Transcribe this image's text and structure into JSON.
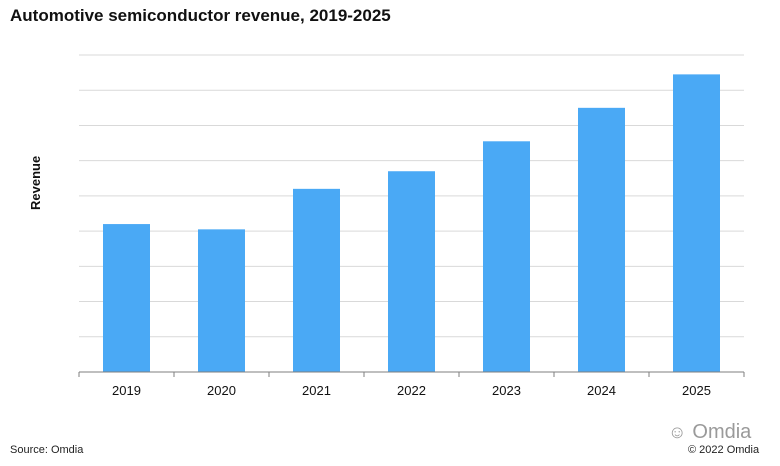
{
  "chart_data": {
    "type": "bar",
    "title": "Automotive semiconductor revenue, 2019-2025",
    "xlabel": "",
    "ylabel": "Revenue",
    "categories": [
      "2019",
      "2020",
      "2021",
      "2022",
      "2023",
      "2024",
      "2025"
    ],
    "values": [
      4.2,
      4.05,
      5.2,
      5.7,
      6.55,
      7.5,
      8.45
    ],
    "ylim": [
      0,
      9
    ],
    "grid": true,
    "bar_color": "#4aa9f5",
    "grid_color": "#d9d9d9",
    "axis_color": "#7f7f7f"
  },
  "footer": {
    "source": "Source: Omdia",
    "watermark": "Omdia",
    "watermark_icon": "wechat-icon",
    "copyright": "© 2022 Omdia"
  }
}
